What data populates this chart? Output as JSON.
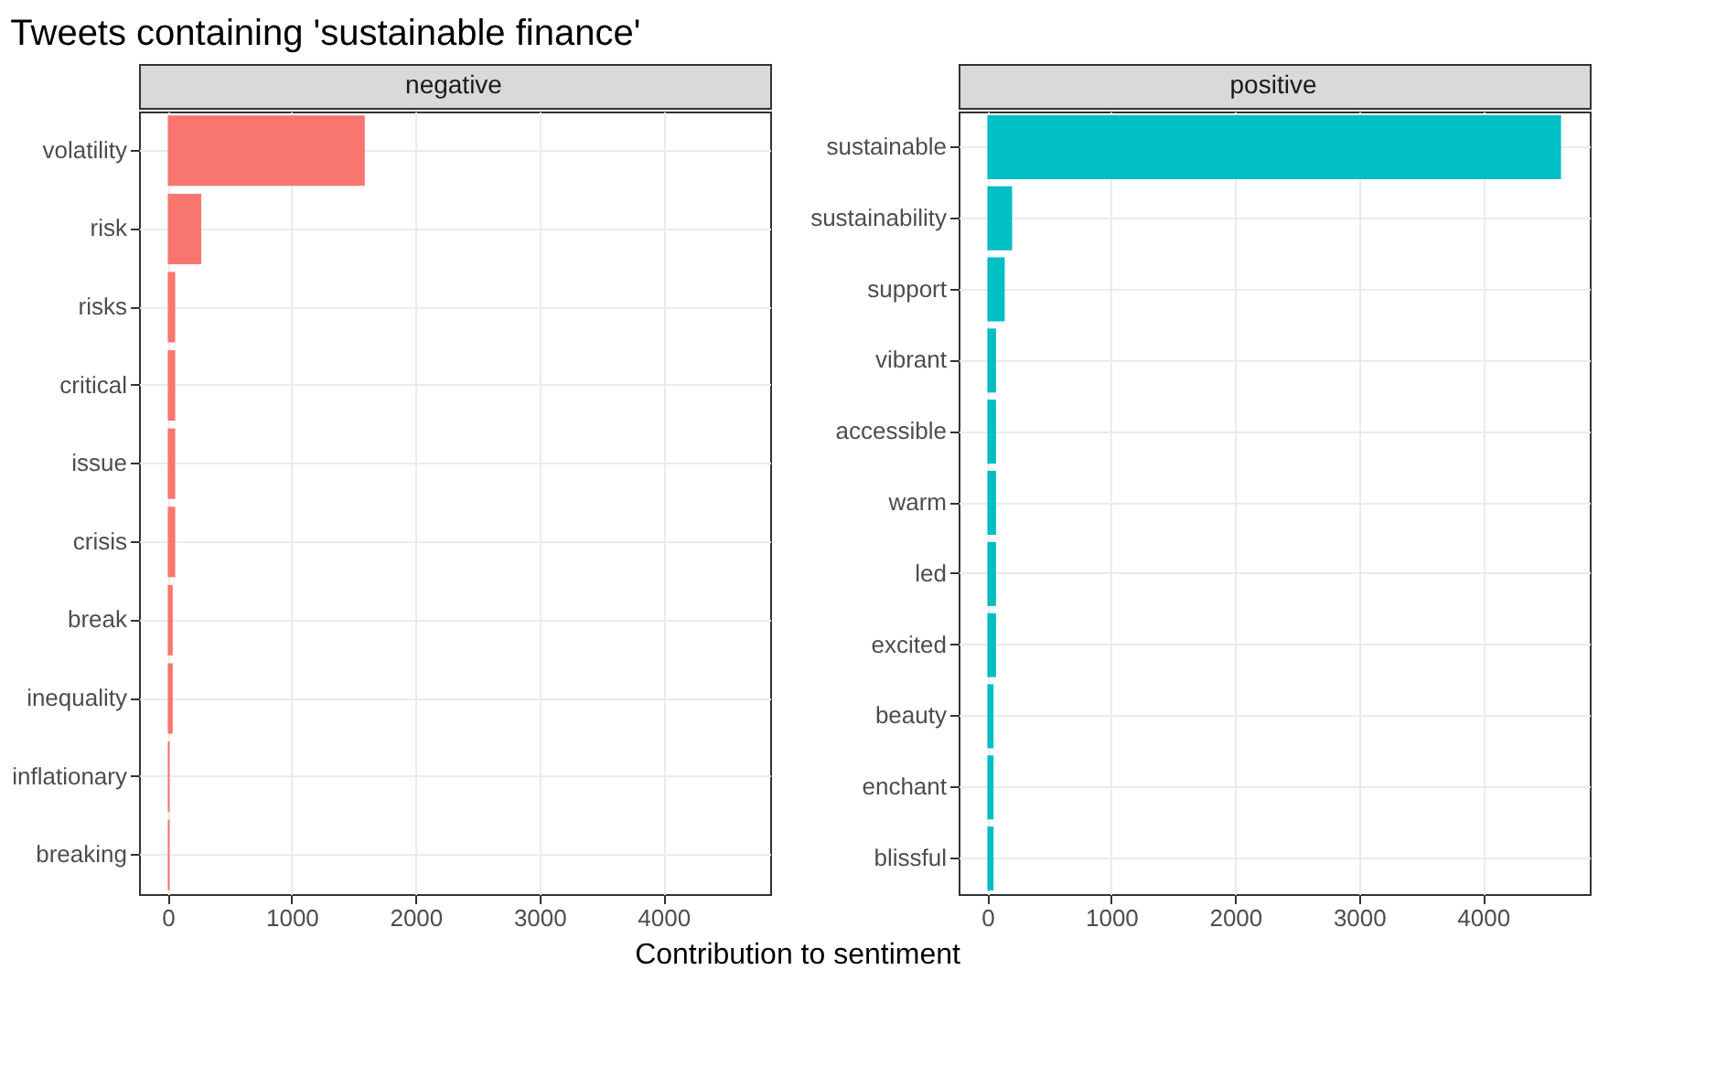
{
  "chart_data": [
    {
      "type": "bar",
      "orientation": "horizontal",
      "title": "Tweets containing 'sustainable finance'",
      "subtitle": "negative",
      "xlabel": "Contribution to sentiment",
      "categories": [
        "volatility",
        "risk",
        "risks",
        "critical",
        "issue",
        "crisis",
        "break",
        "inequality",
        "inflationary",
        "breaking"
      ],
      "values": [
        1590,
        270,
        60,
        60,
        60,
        60,
        40,
        40,
        15,
        15
      ],
      "color": "#f8766d",
      "xlim": [
        -232,
        4862
      ],
      "xticks": [
        0,
        1000,
        2000,
        3000,
        4000
      ],
      "grid": true
    },
    {
      "type": "bar",
      "orientation": "horizontal",
      "subtitle": "positive",
      "categories": [
        "sustainable",
        "sustainability",
        "support",
        "vibrant",
        "accessible",
        "warm",
        "led",
        "excited",
        "beauty",
        "enchant",
        "blissful"
      ],
      "values": [
        4630,
        200,
        140,
        70,
        70,
        70,
        70,
        70,
        50,
        50,
        50
      ],
      "color": "#00bfc4",
      "xlim": [
        -232,
        4862
      ],
      "xticks": [
        0,
        1000,
        2000,
        3000,
        4000
      ],
      "grid": true
    }
  ]
}
